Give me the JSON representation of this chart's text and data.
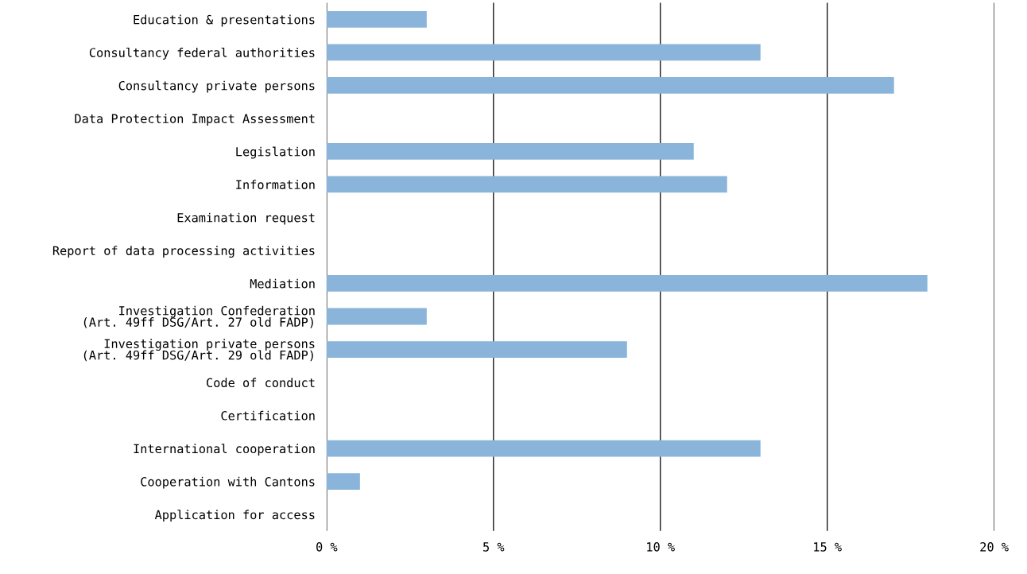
{
  "chart_data": {
    "type": "bar",
    "orientation": "horizontal",
    "categories": [
      "Education & presentations",
      "Consultancy federal authorities",
      "Consultancy private persons",
      "Data Protection Impact Assessment",
      "Legislation",
      "Information",
      "Examination request",
      "Report of data processing activities",
      "Mediation",
      "Investigation Confederation\n(Art. 49ff DSG/Art. 27 old FADP)",
      "Investigation private persons\n(Art. 49ff DSG/Art. 29 old FADP)",
      "Code of conduct",
      "Certification",
      "International cooperation",
      "Cooperation with Cantons",
      "Application for access"
    ],
    "values": [
      3,
      13,
      17,
      0,
      11,
      12,
      0,
      0,
      18,
      3,
      9,
      0,
      0,
      13,
      1,
      0
    ],
    "color": "#8ab4d9",
    "xlim": [
      0,
      20
    ],
    "xticks": [
      {
        "value": 0,
        "label": "0 %"
      },
      {
        "value": 5,
        "label": "5 %"
      },
      {
        "value": 10,
        "label": "10 %"
      },
      {
        "value": 15,
        "label": "15 %"
      },
      {
        "value": 20,
        "label": "20 %"
      }
    ],
    "grid": "x"
  }
}
